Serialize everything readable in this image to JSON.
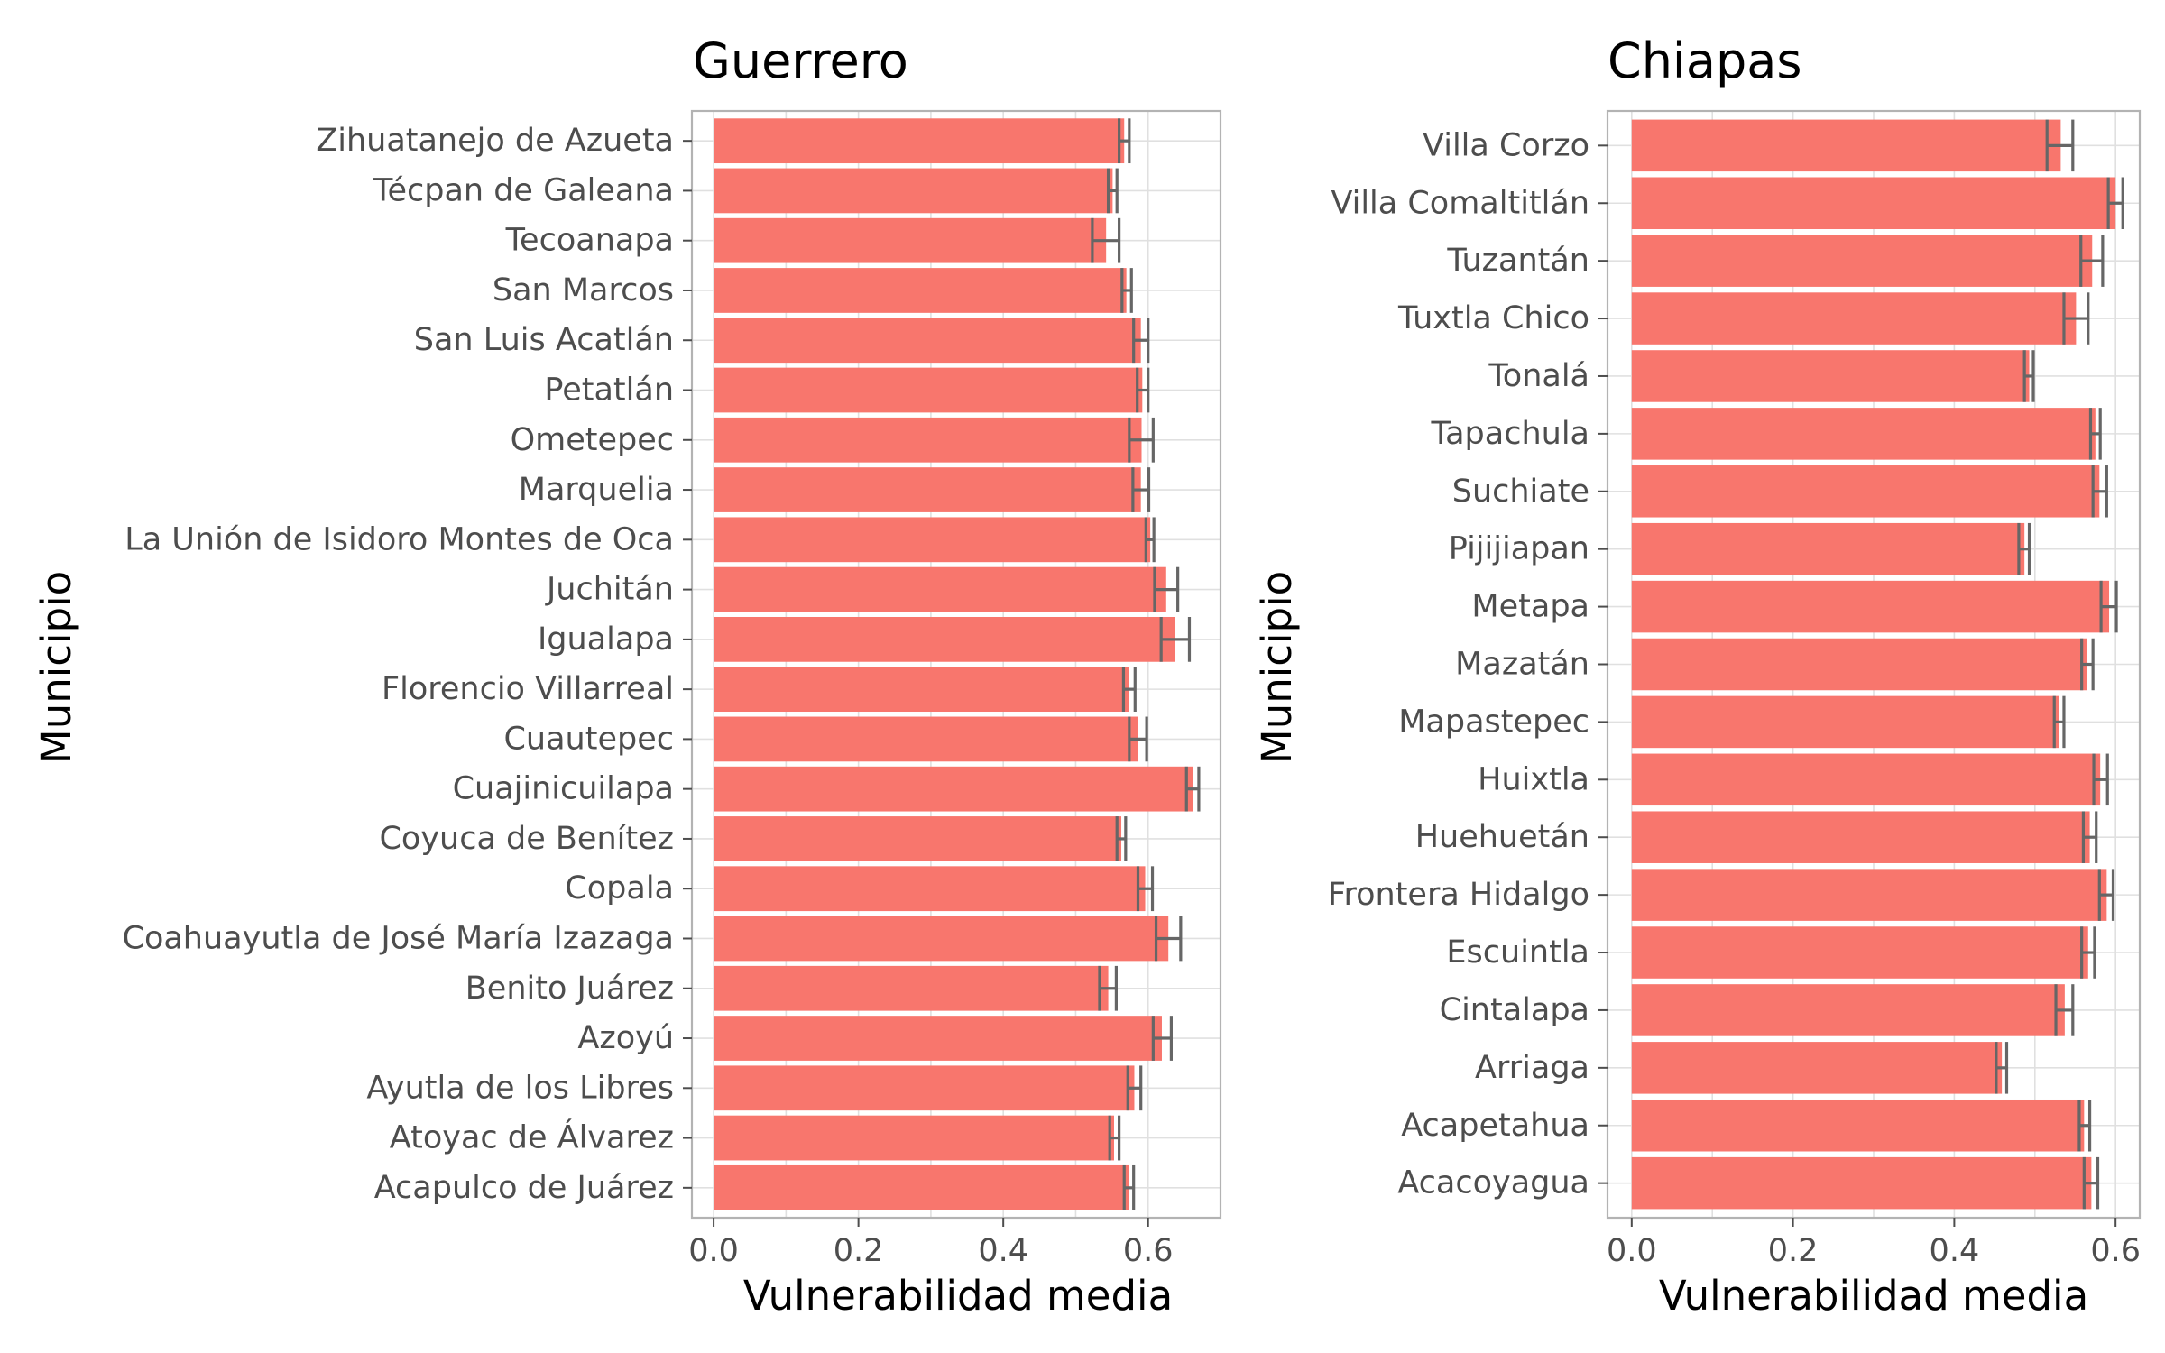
{
  "chart_data": [
    {
      "type": "bar",
      "orientation": "horizontal",
      "title": "Guerrero",
      "xlabel": "Vulnerabilidad media",
      "ylabel": "Municipio",
      "xlim": [
        -0.03,
        0.7
      ],
      "xticks": [
        "0.0",
        "0.2",
        "0.4",
        "0.6"
      ],
      "xtick_values": [
        0,
        0.2,
        0.4,
        0.6
      ],
      "grid": true,
      "bar_color": "#f8766d",
      "errorbar_color": "#666666",
      "categories": [
        "Acapulco de Juárez",
        "Atoyac de Álvarez",
        "Ayutla de los Libres",
        "Azoyú",
        "Benito Juárez",
        "Coahuayutla de José María Izazaga",
        "Copala",
        "Coyuca de Benítez",
        "Cuajinicuilapa",
        "Cuautepec",
        "Florencio Villarreal",
        "Igualapa",
        "Juchitán",
        "La Unión de Isidoro Montes de Oca",
        "Marquelia",
        "Ometepec",
        "Petatlán",
        "San Luis Acatlán",
        "San Marcos",
        "Tecoanapa",
        "Técpan de Galeana",
        "Zihuatanejo de Azueta"
      ],
      "values": [
        0.573,
        0.553,
        0.581,
        0.619,
        0.545,
        0.628,
        0.596,
        0.563,
        0.662,
        0.586,
        0.574,
        0.637,
        0.625,
        0.603,
        0.59,
        0.591,
        0.592,
        0.59,
        0.57,
        0.542,
        0.551,
        0.567
      ],
      "err_low": [
        0.567,
        0.547,
        0.572,
        0.607,
        0.533,
        0.611,
        0.586,
        0.557,
        0.653,
        0.574,
        0.566,
        0.618,
        0.609,
        0.597,
        0.579,
        0.574,
        0.585,
        0.58,
        0.564,
        0.523,
        0.545,
        0.56
      ],
      "err_high": [
        0.58,
        0.56,
        0.59,
        0.632,
        0.556,
        0.645,
        0.606,
        0.569,
        0.67,
        0.598,
        0.582,
        0.657,
        0.641,
        0.608,
        0.601,
        0.607,
        0.6,
        0.6,
        0.577,
        0.56,
        0.557,
        0.574
      ]
    },
    {
      "type": "bar",
      "orientation": "horizontal",
      "title": "Chiapas",
      "xlabel": "Vulnerabilidad media",
      "ylabel": "Municipio",
      "xlim": [
        -0.03,
        0.63
      ],
      "xticks": [
        "0.0",
        "0.2",
        "0.4",
        "0.6"
      ],
      "xtick_values": [
        0,
        0.2,
        0.4,
        0.6
      ],
      "grid": true,
      "bar_color": "#f8766d",
      "errorbar_color": "#666666",
      "categories": [
        "Acacoyagua",
        "Acapetahua",
        "Arriaga",
        "Cintalapa",
        "Escuintla",
        "Frontera Hidalgo",
        "Huehuetán",
        "Huixtla",
        "Mapastepec",
        "Mazatán",
        "Metapa",
        "Pijijiapan",
        "Suchiate",
        "Tapachula",
        "Tonalá",
        "Tuxtla Chico",
        "Tuzantán",
        "Villa Comaltitlán",
        "Villa Corzo"
      ],
      "values": [
        0.57,
        0.561,
        0.459,
        0.537,
        0.566,
        0.589,
        0.568,
        0.581,
        0.53,
        0.565,
        0.592,
        0.487,
        0.58,
        0.575,
        0.493,
        0.551,
        0.571,
        0.6,
        0.532
      ],
      "err_low": [
        0.561,
        0.555,
        0.452,
        0.526,
        0.558,
        0.58,
        0.56,
        0.573,
        0.524,
        0.558,
        0.582,
        0.48,
        0.572,
        0.569,
        0.487,
        0.536,
        0.557,
        0.591,
        0.515
      ],
      "err_high": [
        0.578,
        0.568,
        0.465,
        0.547,
        0.574,
        0.597,
        0.576,
        0.59,
        0.536,
        0.572,
        0.601,
        0.493,
        0.589,
        0.581,
        0.498,
        0.566,
        0.584,
        0.609,
        0.547
      ]
    }
  ]
}
